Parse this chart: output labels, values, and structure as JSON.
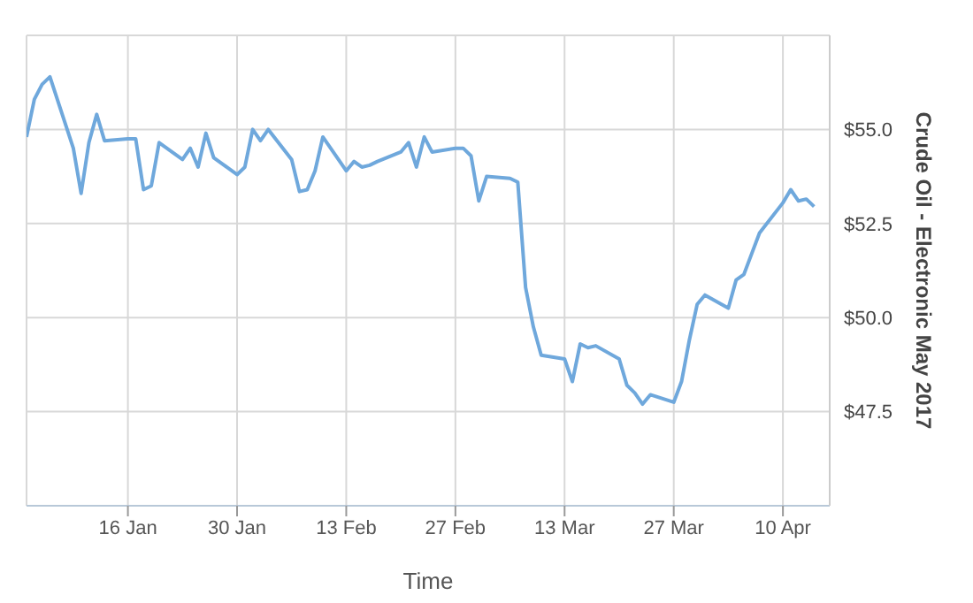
{
  "chart_data": {
    "type": "line",
    "xlabel": "Time",
    "ylabel": "Crude Oil - Electronic May 2017",
    "x": [
      "--01-03",
      "--01-04",
      "--01-05",
      "--01-06",
      "--01-09",
      "--01-10",
      "--01-11",
      "--01-12",
      "--01-13",
      "--01-16",
      "--01-17",
      "--01-18",
      "--01-19",
      "--01-20",
      "--01-23",
      "--01-24",
      "--01-25",
      "--01-26",
      "--01-27",
      "--01-30",
      "--01-31",
      "--02-01",
      "--02-02",
      "--02-03",
      "--02-06",
      "--02-07",
      "--02-08",
      "--02-09",
      "--02-10",
      "--02-13",
      "--02-14",
      "--02-15",
      "--02-16",
      "--02-17",
      "--02-20",
      "--02-21",
      "--02-22",
      "--02-23",
      "--02-24",
      "--02-27",
      "--02-28",
      "--03-01",
      "--03-02",
      "--03-03",
      "--03-06",
      "--03-07",
      "--03-08",
      "--03-09",
      "--03-10",
      "--03-13",
      "--03-14",
      "--03-15",
      "--03-16",
      "--03-17",
      "--03-20",
      "--03-21",
      "--03-22",
      "--03-23",
      "--03-24",
      "--03-27",
      "--03-28",
      "--03-29",
      "--03-30",
      "--03-31",
      "--04-03",
      "--04-04",
      "--04-05",
      "--04-06",
      "--04-07",
      "--04-10",
      "--04-11",
      "--04-12",
      "--04-13",
      "--04-14"
    ],
    "series": [
      {
        "color": "#6fa8dc",
        "values": [
          54.8,
          55.8,
          56.2,
          56.4,
          54.5,
          53.3,
          54.65,
          55.4,
          54.7,
          54.75,
          54.75,
          53.4,
          53.5,
          54.65,
          54.2,
          54.5,
          54.0,
          54.9,
          54.25,
          53.8,
          54.0,
          55.0,
          54.7,
          55.0,
          54.2,
          53.35,
          53.4,
          53.9,
          54.8,
          53.9,
          54.15,
          54.0,
          54.05,
          54.15,
          54.4,
          54.65,
          54.0,
          54.8,
          54.4,
          54.5,
          54.5,
          54.3,
          53.1,
          53.75,
          53.7,
          53.6,
          50.8,
          49.75,
          49.0,
          48.9,
          48.3,
          49.3,
          49.2,
          49.25,
          48.9,
          48.2,
          48.0,
          47.7,
          47.95,
          47.75,
          48.3,
          49.4,
          50.35,
          50.6,
          50.25,
          51.0,
          51.15,
          51.7,
          52.25,
          53.05,
          53.4,
          53.1,
          53.15,
          52.95
        ]
      }
    ],
    "xlim": [
      "--01-03",
      "--04-16"
    ],
    "xticks": [
      {
        "value": "--01-16",
        "label": "16 Jan"
      },
      {
        "value": "--01-30",
        "label": "30 Jan"
      },
      {
        "value": "--02-13",
        "label": "13 Feb"
      },
      {
        "value": "--02-27",
        "label": "27 Feb"
      },
      {
        "value": "--03-13",
        "label": "13 Mar"
      },
      {
        "value": "--03-27",
        "label": "27 Mar"
      },
      {
        "value": "--04-10",
        "label": "10 Apr"
      }
    ],
    "ylim": [
      45,
      57.5
    ],
    "yticks": [
      {
        "value": 47.5,
        "label": "$47.5"
      },
      {
        "value": 50,
        "label": "$50.0"
      },
      {
        "value": 52.5,
        "label": "$52.5"
      },
      {
        "value": 55,
        "label": "$55.0"
      }
    ],
    "grid": true,
    "legend": false,
    "marker": "none",
    "line_style": "solid"
  }
}
